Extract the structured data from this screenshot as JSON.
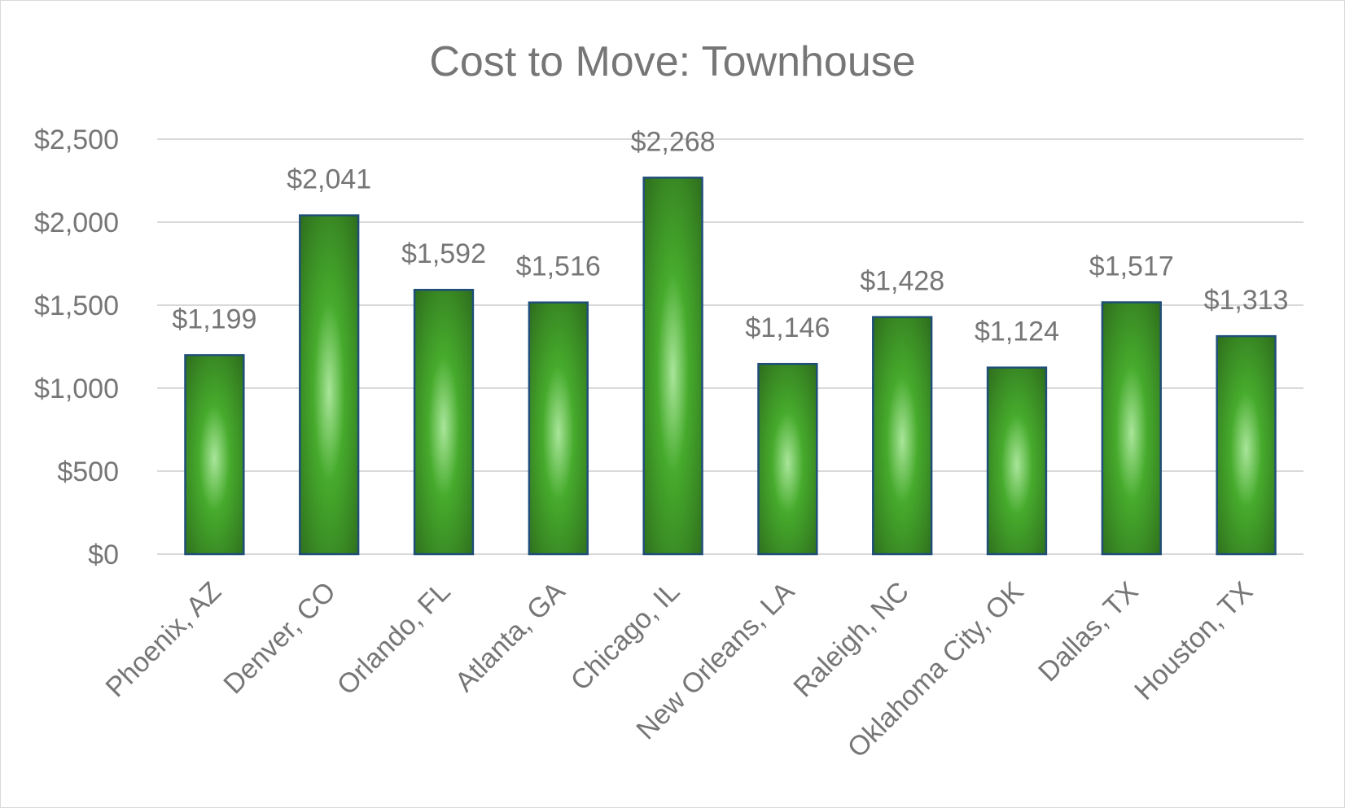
{
  "chart_data": {
    "type": "bar",
    "title": "Cost to Move: Townhouse",
    "xlabel": "",
    "ylabel": "",
    "categories": [
      "Phoenix, AZ",
      "Denver, CO",
      "Orlando, FL",
      "Atlanta, GA",
      "Chicago, IL",
      "New Orleans, LA",
      "Raleigh, NC",
      "Oklahoma City, OK",
      "Dallas, TX",
      "Houston, TX"
    ],
    "values": [
      1199,
      2041,
      1592,
      1516,
      2268,
      1146,
      1428,
      1124,
      1517,
      1313
    ],
    "value_labels": [
      "$1,199",
      "$2,041",
      "$1,592",
      "$1,516",
      "$2,268",
      "$1,146",
      "$1,428",
      "$1,124",
      "$1,517",
      "$1,313"
    ],
    "ylim": [
      0,
      2500
    ],
    "yticks": [
      0,
      500,
      1000,
      1500,
      2000,
      2500
    ],
    "ytick_labels": [
      "$0",
      "$500",
      "$1,000",
      "$1,500",
      "$2,000",
      "$2,500"
    ],
    "grid": true,
    "legend": "none",
    "colors": {
      "bar_light": "#a9e59a",
      "bar_mid": "#46ab2c",
      "bar_dark": "#2f6f1d",
      "bar_outline": "#1f4e79",
      "text": "#767676",
      "grid": "#d9d9d9"
    }
  }
}
